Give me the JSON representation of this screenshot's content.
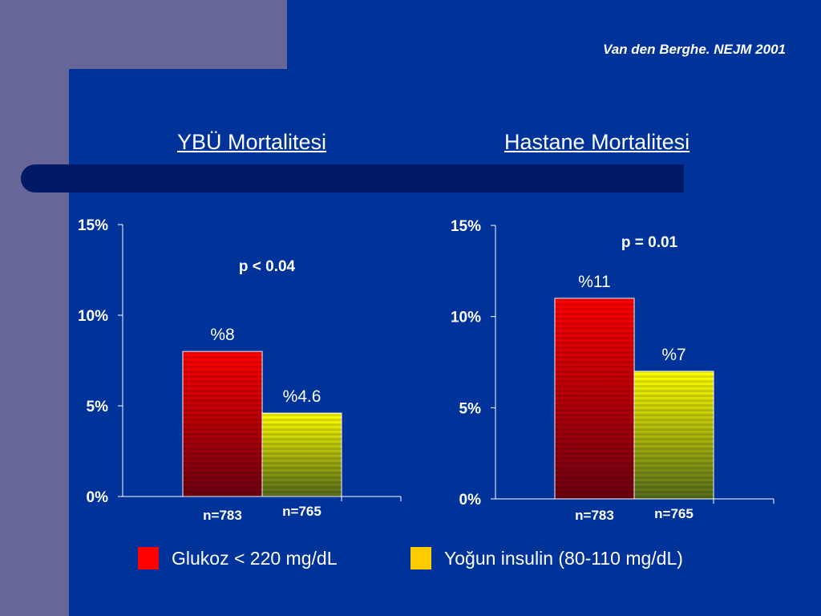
{
  "citation": "Van den Berghe. NEJM 2001",
  "colors": {
    "background": "#003399",
    "control": "#ff0000",
    "intensive": "#ffcc00"
  },
  "chart_data": [
    {
      "type": "bar",
      "title": "YBÜ Mortalitesi",
      "ylim": [
        0,
        15
      ],
      "yticks": [
        "0%",
        "5%",
        "10%",
        "15%"
      ],
      "p_value": "p < 0.04",
      "series": [
        {
          "name": "Glukoz < 220 mg/dL",
          "value": 8,
          "label": "%8",
          "n": "n=783"
        },
        {
          "name": "Yoğun insulin (80-110 mg/dL)",
          "value": 4.6,
          "label": "%4.6",
          "n": "n=765"
        }
      ]
    },
    {
      "type": "bar",
      "title": "Hastane Mortalitesi",
      "ylim": [
        0,
        15
      ],
      "yticks": [
        "0%",
        "5%",
        "10%",
        "15%"
      ],
      "p_value": "p = 0.01",
      "series": [
        {
          "name": "Glukoz < 220 mg/dL",
          "value": 11,
          "label": "%11",
          "n": "n=783"
        },
        {
          "name": "Yoğun insulin (80-110 mg/dL)",
          "value": 7,
          "label": "%7",
          "n": "n=765"
        }
      ]
    }
  ],
  "legend": [
    {
      "label": "Glukoz < 220 mg/dL",
      "color": "#ff0000"
    },
    {
      "label": "Yoğun insulin (80-110 mg/dL)",
      "color": "#ffcc00"
    }
  ]
}
